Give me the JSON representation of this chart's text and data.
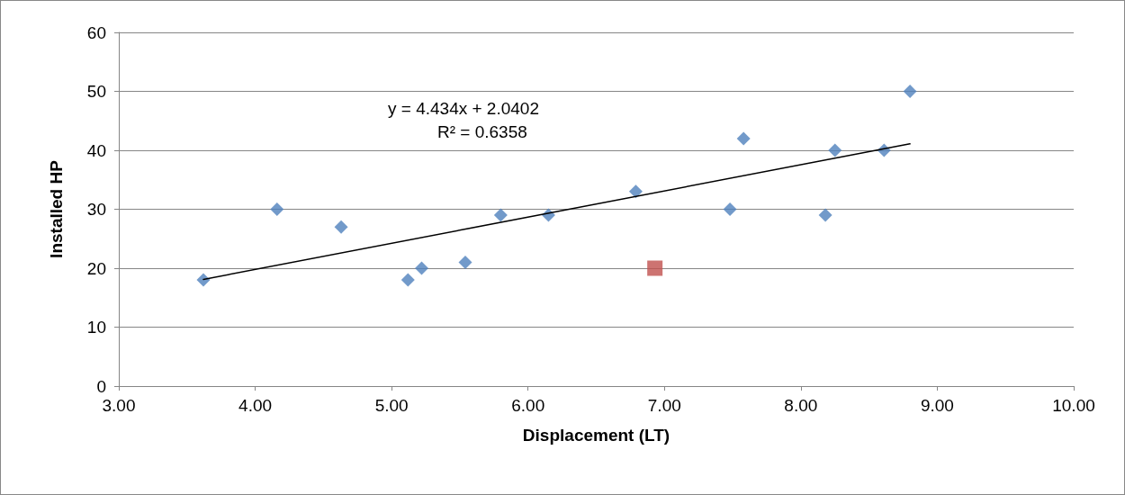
{
  "chart_data": {
    "type": "scatter",
    "xlabel": "Displacement (LT)",
    "ylabel": "Installed HP",
    "xlim": [
      3,
      10
    ],
    "xticks": [
      {
        "value": 3,
        "label": "3.00"
      },
      {
        "value": 4,
        "label": "4.00"
      },
      {
        "value": 5,
        "label": "5.00"
      },
      {
        "value": 6,
        "label": "6.00"
      },
      {
        "value": 7,
        "label": "7.00"
      },
      {
        "value": 8,
        "label": "8.00"
      },
      {
        "value": 9,
        "label": "9.00"
      },
      {
        "value": 10,
        "label": "10.00"
      }
    ],
    "ylim": [
      0,
      60
    ],
    "yticks": [
      0,
      10,
      20,
      30,
      40,
      50,
      60
    ],
    "grid": "y",
    "annotations": [
      "y = 4.434x + 2.0402",
      "R² = 0.6358"
    ],
    "series": [
      {
        "marker": "diamond",
        "color": "#4f81bd",
        "x": [
          3.62,
          4.16,
          4.63,
          5.12,
          5.22,
          5.54,
          5.8,
          6.15,
          6.79,
          7.48,
          7.58,
          8.18,
          8.25,
          8.61,
          8.8
        ],
        "values": [
          18,
          30,
          27,
          18,
          20,
          21,
          29,
          29,
          33,
          30,
          42,
          29,
          40,
          40,
          50
        ]
      },
      {
        "marker": "square",
        "color": "#c0504d",
        "x": [
          6.93
        ],
        "values": [
          20
        ]
      },
      {
        "type": "line",
        "marker": "none",
        "color": "#000000",
        "line_style": "solid",
        "x": [
          3.62,
          8.8
        ],
        "values": [
          18.1,
          41.1
        ]
      }
    ]
  }
}
